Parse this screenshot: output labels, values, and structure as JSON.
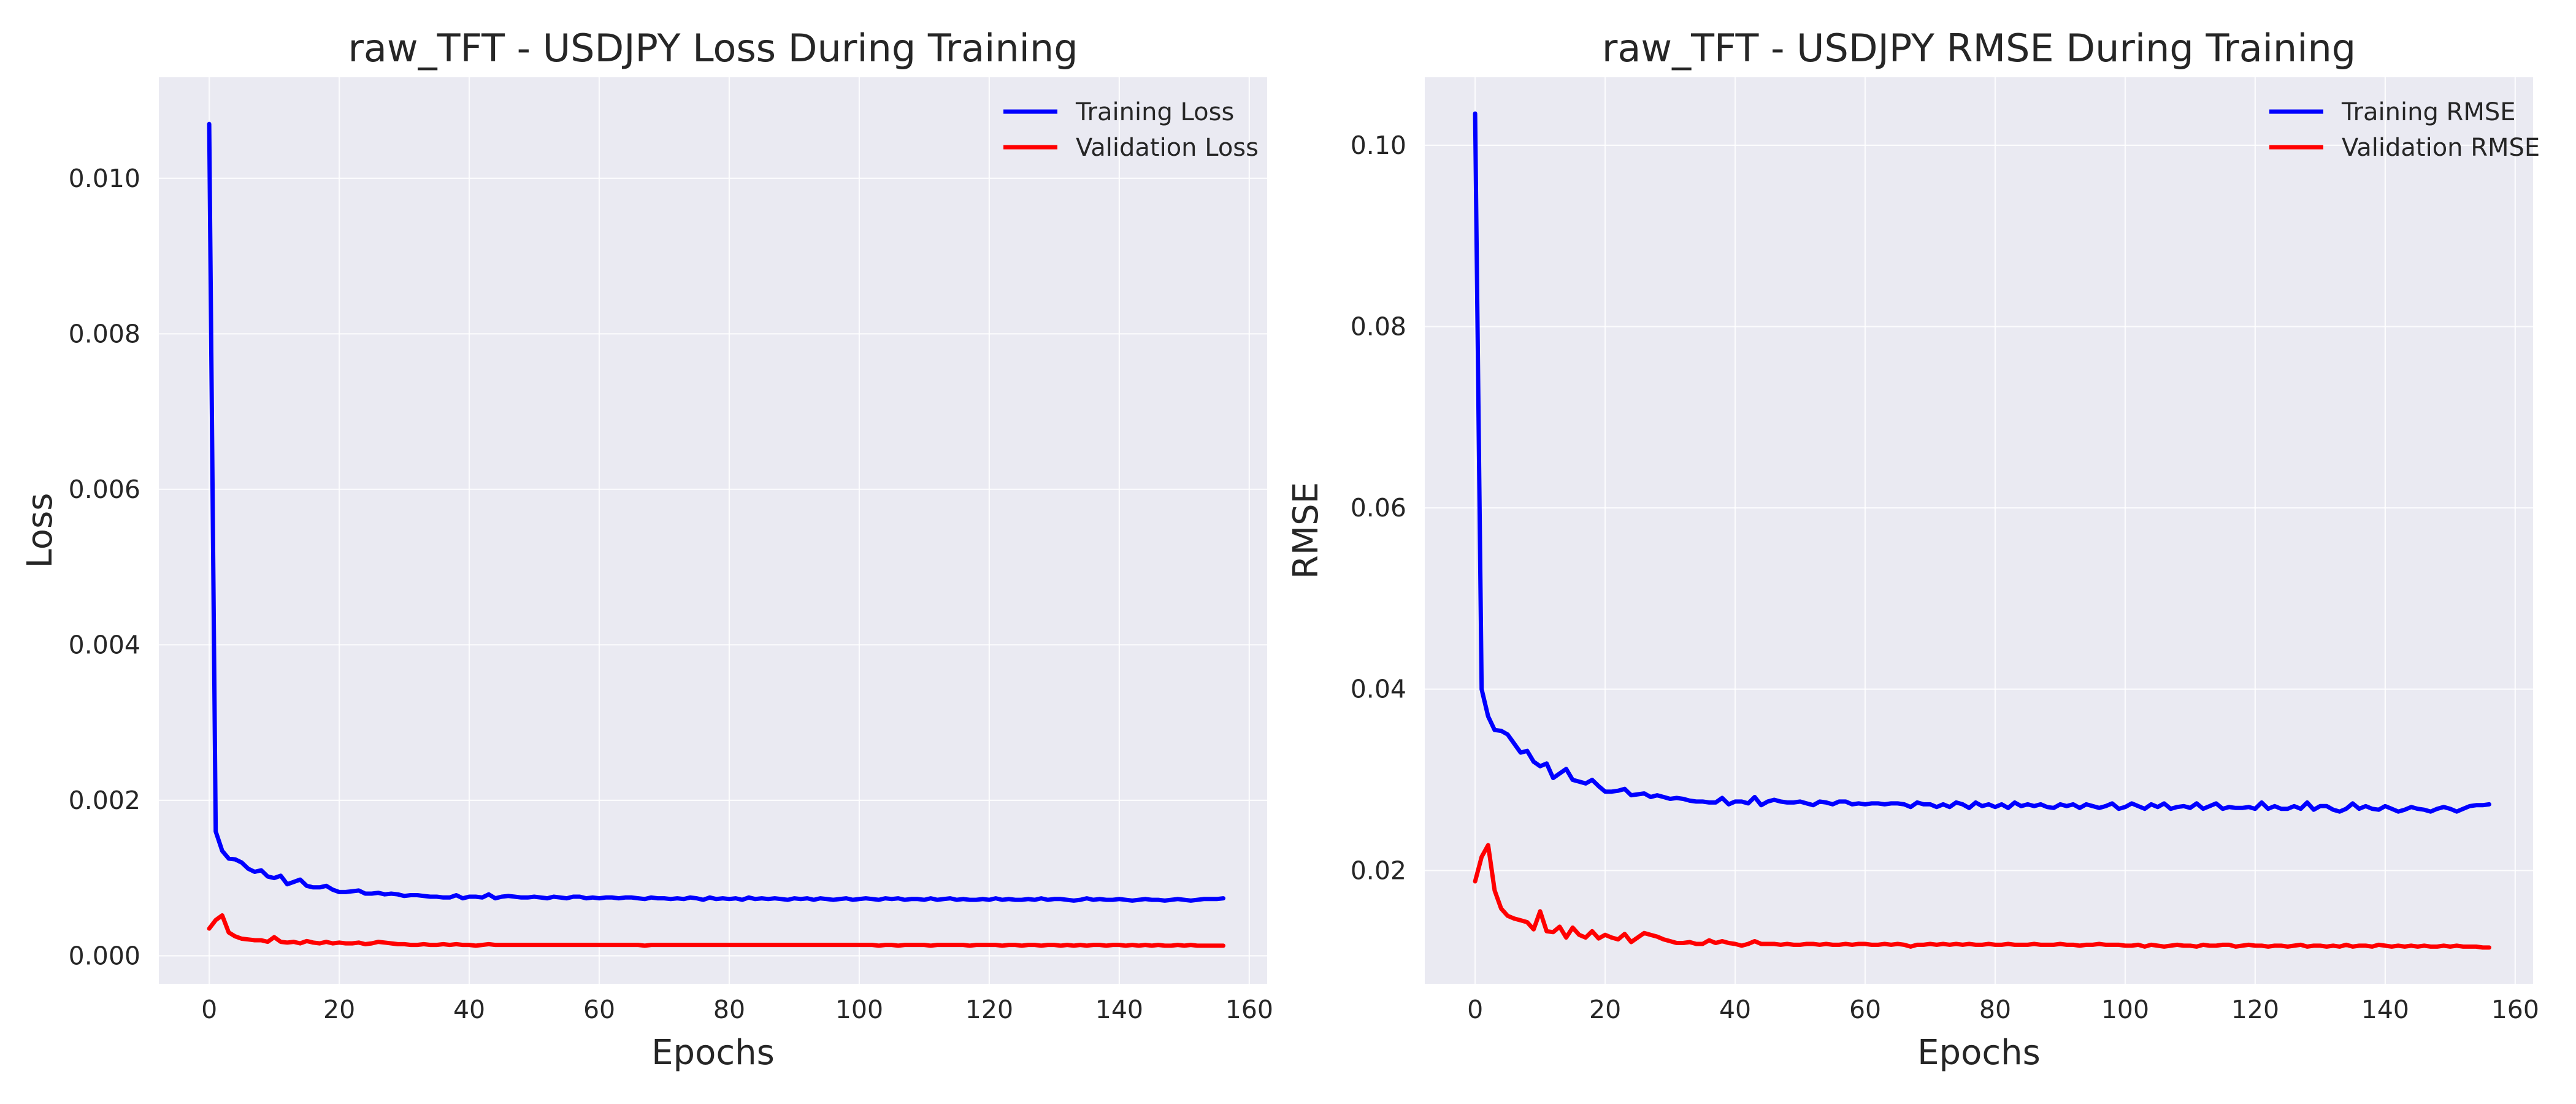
{
  "style": {
    "plot_bg": "#EAEAF2",
    "grid_color": "#FFFFFF",
    "text_color": "#262626",
    "train_color": "#0000FF",
    "val_color": "#FF0000"
  },
  "chart_data": [
    {
      "type": "line",
      "title": "raw_TFT - USDJPY Loss During Training",
      "xlabel": "Epochs",
      "ylabel": "Loss",
      "xlim": [
        -7.75,
        162.75
      ],
      "ylim": [
        -0.00036,
        0.0113
      ],
      "xticks": [
        0,
        20,
        40,
        60,
        80,
        100,
        120,
        140,
        160
      ],
      "xtick_labels": [
        "0",
        "20",
        "40",
        "60",
        "80",
        "100",
        "120",
        "140",
        "160"
      ],
      "yticks": [
        0,
        0.002,
        0.004,
        0.006,
        0.008,
        0.01
      ],
      "ytick_labels": [
        "0.000",
        "0.002",
        "0.004",
        "0.006",
        "0.008",
        "0.010"
      ],
      "grid": true,
      "legend_position": "top-right",
      "series": [
        {
          "name": "Training Loss",
          "color": "#0000FF",
          "x_start": 0,
          "values": [
            0.0107,
            0.0016,
            0.00135,
            0.00125,
            0.00124,
            0.0012,
            0.00112,
            0.00108,
            0.0011,
            0.00102,
            0.001,
            0.00103,
            0.00092,
            0.00095,
            0.00098,
            0.0009,
            0.00088,
            0.00088,
            0.0009,
            0.00085,
            0.00082,
            0.00082,
            0.00083,
            0.00084,
            0.0008,
            0.0008,
            0.00081,
            0.00079,
            0.0008,
            0.00079,
            0.00077,
            0.00078,
            0.00078,
            0.00077,
            0.00076,
            0.00076,
            0.00075,
            0.00075,
            0.00078,
            0.00074,
            0.00076,
            0.00076,
            0.00075,
            0.00079,
            0.00074,
            0.00076,
            0.00077,
            0.00076,
            0.00075,
            0.00075,
            0.00076,
            0.00075,
            0.00074,
            0.00076,
            0.00075,
            0.00074,
            0.00076,
            0.00076,
            0.00074,
            0.00075,
            0.00074,
            0.00075,
            0.00075,
            0.00074,
            0.00075,
            0.00075,
            0.00074,
            0.00073,
            0.00075,
            0.00074,
            0.00074,
            0.00073,
            0.00074,
            0.00073,
            0.00075,
            0.00074,
            0.00072,
            0.00075,
            0.00073,
            0.00074,
            0.00073,
            0.00074,
            0.00072,
            0.00075,
            0.00073,
            0.00074,
            0.00073,
            0.00074,
            0.00073,
            0.00072,
            0.00074,
            0.00073,
            0.00074,
            0.00072,
            0.00074,
            0.00073,
            0.00072,
            0.00073,
            0.00074,
            0.00072,
            0.00073,
            0.00074,
            0.00073,
            0.00072,
            0.00074,
            0.00073,
            0.00074,
            0.00072,
            0.00073,
            0.00073,
            0.00072,
            0.00074,
            0.00072,
            0.00073,
            0.00074,
            0.00072,
            0.00073,
            0.00072,
            0.00072,
            0.00073,
            0.00072,
            0.00074,
            0.00072,
            0.00073,
            0.00072,
            0.00072,
            0.00073,
            0.00072,
            0.00074,
            0.00072,
            0.00073,
            0.00073,
            0.00072,
            0.00071,
            0.00072,
            0.00074,
            0.00072,
            0.00073,
            0.00072,
            0.00072,
            0.00073,
            0.00072,
            0.00071,
            0.00072,
            0.00073,
            0.00072,
            0.00072,
            0.00071,
            0.00072,
            0.00073,
            0.00072,
            0.00071,
            0.00072,
            0.00073,
            0.00073,
            0.00073,
            0.00074
          ]
        },
        {
          "name": "Validation Loss",
          "color": "#FF0000",
          "x_start": 0,
          "values": [
            0.00035,
            0.00046,
            0.00052,
            0.0003,
            0.00025,
            0.00022,
            0.00021,
            0.0002,
            0.0002,
            0.00018,
            0.00024,
            0.00018,
            0.00017,
            0.00018,
            0.00016,
            0.00019,
            0.00017,
            0.00016,
            0.00018,
            0.00016,
            0.00017,
            0.00016,
            0.00016,
            0.00017,
            0.00015,
            0.00016,
            0.00018,
            0.00017,
            0.00016,
            0.00015,
            0.00015,
            0.00014,
            0.00014,
            0.00015,
            0.00014,
            0.00014,
            0.00015,
            0.00014,
            0.00015,
            0.00014,
            0.00014,
            0.00013,
            0.00014,
            0.00015,
            0.00014,
            0.00014,
            0.00014,
            0.00014,
            0.00014,
            0.00014,
            0.00014,
            0.00014,
            0.00014,
            0.00014,
            0.00014,
            0.00014,
            0.00014,
            0.00014,
            0.00014,
            0.00014,
            0.00014,
            0.00014,
            0.00014,
            0.00014,
            0.00014,
            0.00014,
            0.00014,
            0.00013,
            0.00014,
            0.00014,
            0.00014,
            0.00014,
            0.00014,
            0.00014,
            0.00014,
            0.00014,
            0.00014,
            0.00014,
            0.00014,
            0.00014,
            0.00014,
            0.00014,
            0.00014,
            0.00014,
            0.00014,
            0.00014,
            0.00014,
            0.00014,
            0.00014,
            0.00014,
            0.00014,
            0.00014,
            0.00014,
            0.00014,
            0.00014,
            0.00014,
            0.00014,
            0.00014,
            0.00014,
            0.00014,
            0.00014,
            0.00014,
            0.00014,
            0.00013,
            0.00014,
            0.00014,
            0.00013,
            0.00014,
            0.00014,
            0.00014,
            0.00014,
            0.00013,
            0.00014,
            0.00014,
            0.00014,
            0.00014,
            0.00014,
            0.00013,
            0.00014,
            0.00014,
            0.00014,
            0.00014,
            0.00013,
            0.00014,
            0.00014,
            0.00013,
            0.00014,
            0.00014,
            0.00013,
            0.00014,
            0.00014,
            0.00013,
            0.00014,
            0.00013,
            0.00014,
            0.00013,
            0.00014,
            0.00014,
            0.00013,
            0.00014,
            0.00014,
            0.00013,
            0.00014,
            0.00013,
            0.00014,
            0.00013,
            0.00014,
            0.00013,
            0.00013,
            0.00014,
            0.00013,
            0.00014,
            0.00013,
            0.00013,
            0.00013,
            0.00013,
            0.00013
          ]
        }
      ]
    },
    {
      "type": "line",
      "title": "raw_TFT - USDJPY RMSE During Training",
      "xlabel": "Epochs",
      "ylabel": "RMSE",
      "xlim": [
        -7.75,
        162.75
      ],
      "ylim": [
        0.0075,
        0.1075
      ],
      "xticks": [
        0,
        20,
        40,
        60,
        80,
        100,
        120,
        140,
        160
      ],
      "xtick_labels": [
        "0",
        "20",
        "40",
        "60",
        "80",
        "100",
        "120",
        "140",
        "160"
      ],
      "yticks": [
        0.02,
        0.04,
        0.06,
        0.08,
        0.1
      ],
      "ytick_labels": [
        "0.02",
        "0.04",
        "0.06",
        "0.08",
        "0.10"
      ],
      "grid": true,
      "legend_position": "top-right",
      "series": [
        {
          "name": "Training RMSE",
          "color": "#0000FF",
          "x_start": 0,
          "values": [
            0.1035,
            0.04,
            0.037,
            0.0355,
            0.0354,
            0.035,
            0.034,
            0.033,
            0.0332,
            0.032,
            0.0315,
            0.0318,
            0.0302,
            0.0307,
            0.0312,
            0.03,
            0.0298,
            0.0296,
            0.03,
            0.0293,
            0.0287,
            0.0287,
            0.0288,
            0.029,
            0.0283,
            0.0284,
            0.0285,
            0.0281,
            0.0283,
            0.0281,
            0.0279,
            0.028,
            0.0279,
            0.0277,
            0.0276,
            0.0276,
            0.0275,
            0.0275,
            0.028,
            0.0273,
            0.0276,
            0.0276,
            0.0274,
            0.0281,
            0.0272,
            0.0276,
            0.0278,
            0.0276,
            0.0275,
            0.0275,
            0.0276,
            0.0274,
            0.0272,
            0.0276,
            0.0275,
            0.0273,
            0.0276,
            0.0276,
            0.0273,
            0.0274,
            0.0273,
            0.0274,
            0.0274,
            0.0273,
            0.0274,
            0.0274,
            0.0273,
            0.027,
            0.0275,
            0.0273,
            0.0273,
            0.027,
            0.0273,
            0.027,
            0.0275,
            0.0273,
            0.0269,
            0.0275,
            0.0271,
            0.0273,
            0.027,
            0.0273,
            0.0269,
            0.0275,
            0.0271,
            0.0273,
            0.0271,
            0.0273,
            0.027,
            0.0269,
            0.0273,
            0.0271,
            0.0273,
            0.0269,
            0.0273,
            0.0271,
            0.0269,
            0.0271,
            0.0274,
            0.0268,
            0.027,
            0.0274,
            0.0271,
            0.0268,
            0.0273,
            0.027,
            0.0274,
            0.0268,
            0.027,
            0.0271,
            0.0269,
            0.0274,
            0.0268,
            0.0271,
            0.0274,
            0.0268,
            0.027,
            0.0269,
            0.0269,
            0.027,
            0.0268,
            0.0275,
            0.0268,
            0.0271,
            0.0268,
            0.0268,
            0.0271,
            0.0268,
            0.0275,
            0.0267,
            0.0271,
            0.0271,
            0.0267,
            0.0265,
            0.0268,
            0.0274,
            0.0268,
            0.0271,
            0.0268,
            0.0267,
            0.0271,
            0.0268,
            0.0265,
            0.0267,
            0.027,
            0.0268,
            0.0267,
            0.0265,
            0.0268,
            0.027,
            0.0268,
            0.0265,
            0.0268,
            0.0271,
            0.0272,
            0.0272,
            0.0273
          ]
        },
        {
          "name": "Validation RMSE",
          "color": "#FF0000",
          "x_start": 0,
          "values": [
            0.0188,
            0.0215,
            0.0228,
            0.0178,
            0.0158,
            0.015,
            0.0147,
            0.0145,
            0.0143,
            0.0135,
            0.0155,
            0.0133,
            0.0132,
            0.0138,
            0.0126,
            0.0137,
            0.0129,
            0.0126,
            0.0133,
            0.0125,
            0.0129,
            0.0126,
            0.0124,
            0.013,
            0.0121,
            0.0126,
            0.0131,
            0.0129,
            0.0127,
            0.0124,
            0.0122,
            0.012,
            0.012,
            0.0121,
            0.0119,
            0.0119,
            0.0123,
            0.012,
            0.0122,
            0.012,
            0.0119,
            0.0117,
            0.0119,
            0.0122,
            0.0119,
            0.0119,
            0.0119,
            0.0118,
            0.0119,
            0.0118,
            0.0118,
            0.0119,
            0.0119,
            0.0118,
            0.0119,
            0.0118,
            0.0118,
            0.0119,
            0.0118,
            0.0119,
            0.0119,
            0.0118,
            0.0118,
            0.0119,
            0.0118,
            0.0119,
            0.0118,
            0.0116,
            0.0118,
            0.0118,
            0.0119,
            0.0118,
            0.0119,
            0.0118,
            0.0119,
            0.0118,
            0.0119,
            0.0118,
            0.0118,
            0.0119,
            0.0118,
            0.0118,
            0.0119,
            0.0118,
            0.0118,
            0.0118,
            0.0119,
            0.0118,
            0.0118,
            0.0118,
            0.0119,
            0.0118,
            0.0118,
            0.0117,
            0.0118,
            0.0118,
            0.0119,
            0.0118,
            0.0118,
            0.0118,
            0.0117,
            0.0117,
            0.0118,
            0.0116,
            0.0118,
            0.0117,
            0.0116,
            0.0117,
            0.0118,
            0.0117,
            0.0117,
            0.0116,
            0.0118,
            0.0117,
            0.0117,
            0.0118,
            0.0118,
            0.0116,
            0.0117,
            0.0118,
            0.0117,
            0.0117,
            0.0116,
            0.0117,
            0.0117,
            0.0116,
            0.0117,
            0.0118,
            0.0116,
            0.0117,
            0.0117,
            0.0116,
            0.0117,
            0.0116,
            0.0118,
            0.0116,
            0.0117,
            0.0117,
            0.0116,
            0.0118,
            0.0117,
            0.0116,
            0.0117,
            0.0116,
            0.0117,
            0.0116,
            0.0117,
            0.0116,
            0.0116,
            0.0117,
            0.0116,
            0.0117,
            0.0116,
            0.0116,
            0.0116,
            0.0115,
            0.0115
          ]
        }
      ]
    }
  ]
}
